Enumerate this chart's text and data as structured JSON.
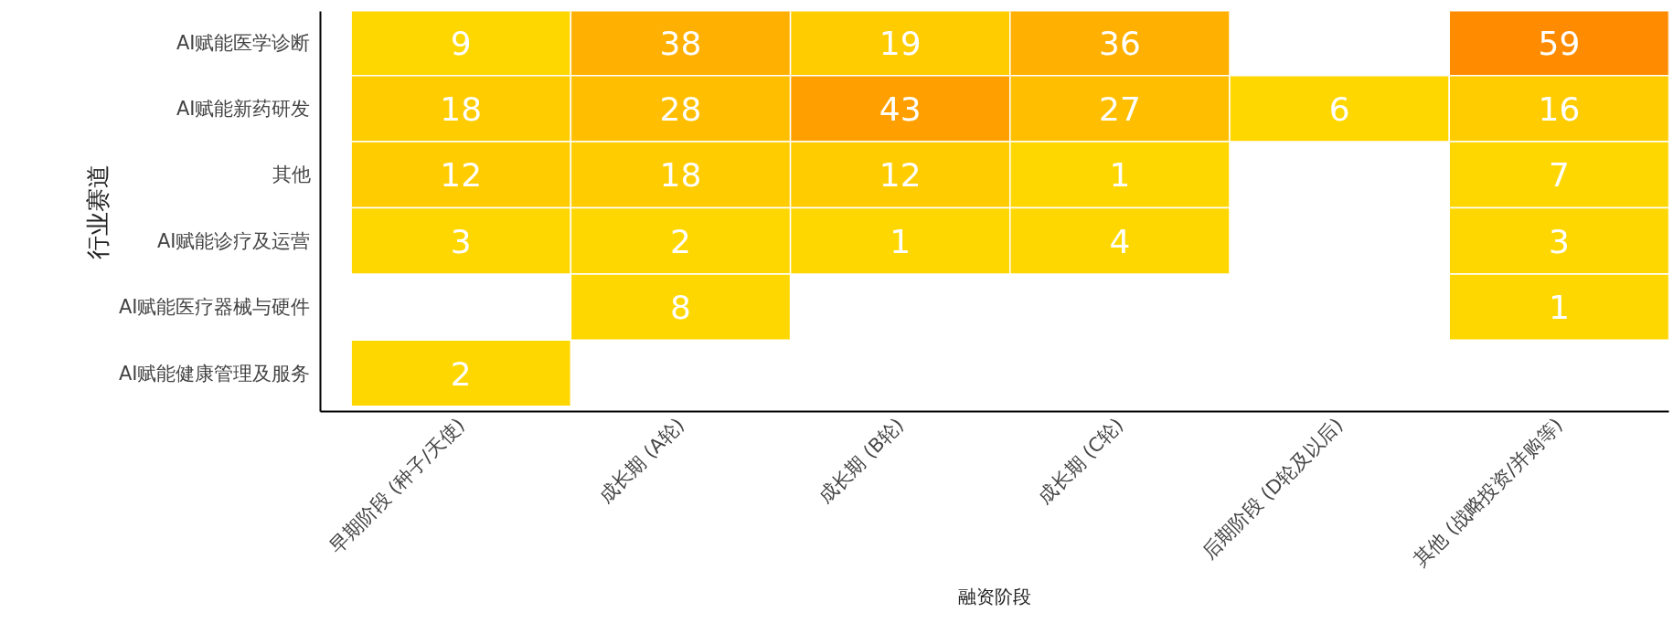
{
  "chart_data": {
    "type": "heatmap",
    "xlabel": "融资阶段",
    "ylabel": "行业赛道",
    "categories": [
      "早期阶段 (种子/天使)",
      "成长期 (A轮)",
      "成长期 (B轮)",
      "成长期 (C轮)",
      "后期阶段 (D轮及以后)",
      "其他 (战略投资/并购等)"
    ],
    "y_categories": [
      "AI赋能医学诊断",
      "AI赋能新药研发",
      "其他",
      "AI赋能诊疗及运营",
      "AI赋能医疗器械与硬件",
      "AI赋能健康管理及服务"
    ],
    "cells": [
      [
        9,
        38,
        19,
        36,
        null,
        59
      ],
      [
        18,
        28,
        43,
        27,
        6,
        16
      ],
      [
        12,
        18,
        12,
        1,
        null,
        7
      ],
      [
        3,
        2,
        1,
        4,
        null,
        3
      ],
      [
        null,
        8,
        null,
        null,
        null,
        1
      ],
      [
        2,
        null,
        null,
        null,
        null,
        null
      ]
    ],
    "data_labels": true
  }
}
